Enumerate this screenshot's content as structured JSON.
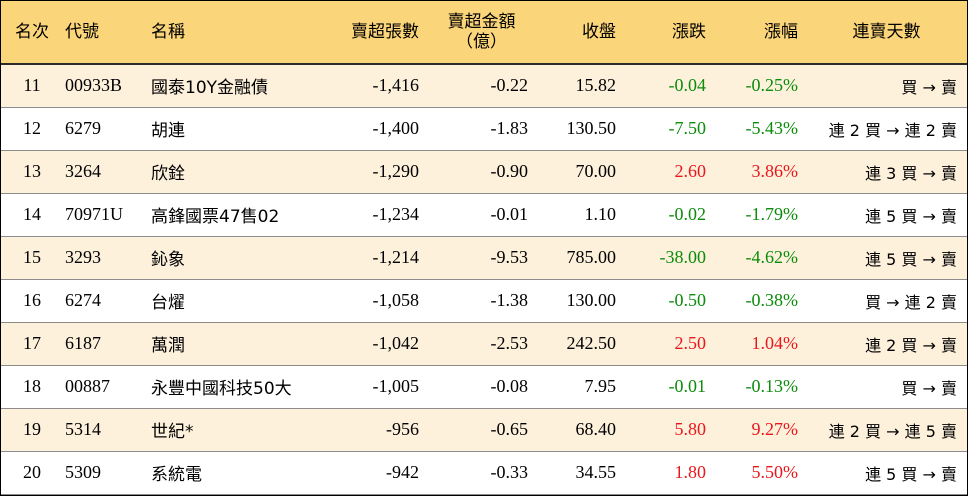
{
  "table": {
    "headers": {
      "rank": "名次",
      "code": "代號",
      "name": "名稱",
      "net_sell_shares": "賣超張數",
      "net_sell_amount_line1": "賣超金額",
      "net_sell_amount_line2": "（億）",
      "close": "收盤",
      "change": "漲跌",
      "change_pct": "漲幅",
      "streak": "連賣天數"
    },
    "rows": [
      {
        "rank": "11",
        "code": "00933B",
        "name": "國泰10Y金融債",
        "net_sell_shares": "-1,416",
        "net_sell_amount": "-0.22",
        "close": "15.82",
        "change": "-0.04",
        "change_pct": "-0.25%",
        "streak": "買 → 賣",
        "direction": "down"
      },
      {
        "rank": "12",
        "code": "6279",
        "name": "胡連",
        "net_sell_shares": "-1,400",
        "net_sell_amount": "-1.83",
        "close": "130.50",
        "change": "-7.50",
        "change_pct": "-5.43%",
        "streak": "連 2 買 → 連 2 賣",
        "direction": "down"
      },
      {
        "rank": "13",
        "code": "3264",
        "name": "欣銓",
        "net_sell_shares": "-1,290",
        "net_sell_amount": "-0.90",
        "close": "70.00",
        "change": "2.60",
        "change_pct": "3.86%",
        "streak": "連 3 買 → 賣",
        "direction": "up"
      },
      {
        "rank": "14",
        "code": "70971U",
        "name": "高鋒國票47售02",
        "net_sell_shares": "-1,234",
        "net_sell_amount": "-0.01",
        "close": "1.10",
        "change": "-0.02",
        "change_pct": "-1.79%",
        "streak": "連 5 買 → 賣",
        "direction": "down"
      },
      {
        "rank": "15",
        "code": "3293",
        "name": "鈊象",
        "net_sell_shares": "-1,214",
        "net_sell_amount": "-9.53",
        "close": "785.00",
        "change": "-38.00",
        "change_pct": "-4.62%",
        "streak": "連 5 買 → 賣",
        "direction": "down"
      },
      {
        "rank": "16",
        "code": "6274",
        "name": "台燿",
        "net_sell_shares": "-1,058",
        "net_sell_amount": "-1.38",
        "close": "130.00",
        "change": "-0.50",
        "change_pct": "-0.38%",
        "streak": "買 → 連 2 賣",
        "direction": "down"
      },
      {
        "rank": "17",
        "code": "6187",
        "name": "萬潤",
        "net_sell_shares": "-1,042",
        "net_sell_amount": "-2.53",
        "close": "242.50",
        "change": "2.50",
        "change_pct": "1.04%",
        "streak": "連 2 買 → 賣",
        "direction": "up"
      },
      {
        "rank": "18",
        "code": "00887",
        "name": "永豐中國科技50大",
        "net_sell_shares": "-1,005",
        "net_sell_amount": "-0.08",
        "close": "7.95",
        "change": "-0.01",
        "change_pct": "-0.13%",
        "streak": "買 → 賣",
        "direction": "down"
      },
      {
        "rank": "19",
        "code": "5314",
        "name": "世紀*",
        "net_sell_shares": "-956",
        "net_sell_amount": "-0.65",
        "close": "68.40",
        "change": "5.80",
        "change_pct": "9.27%",
        "streak": "連 2 買 → 連 5 賣",
        "direction": "up"
      },
      {
        "rank": "20",
        "code": "5309",
        "name": "系統電",
        "net_sell_shares": "-942",
        "net_sell_amount": "-0.33",
        "close": "34.55",
        "change": "1.80",
        "change_pct": "5.50%",
        "streak": "連 5 買 → 賣",
        "direction": "up"
      }
    ]
  },
  "colors": {
    "header_bg": "#fbd57a",
    "row_alt_bg": "#fdf1dc",
    "down": "#0b8c0b",
    "up": "#e8171c"
  }
}
